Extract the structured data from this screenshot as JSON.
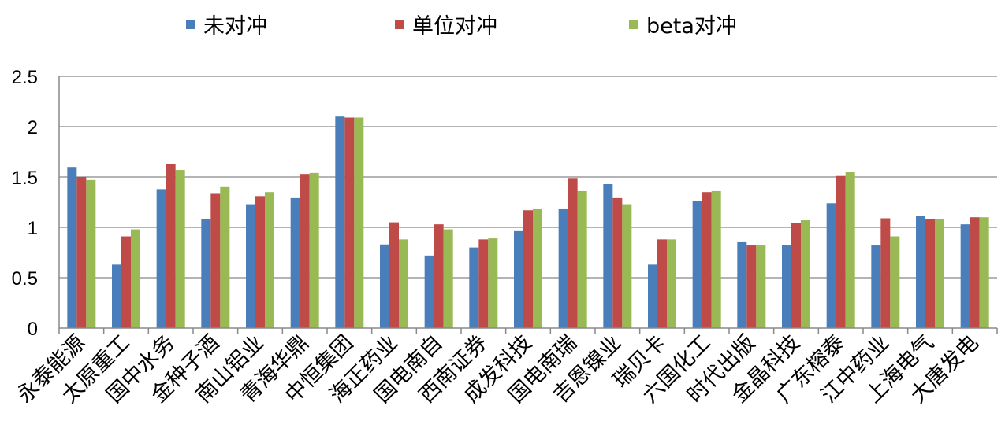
{
  "chart_data": {
    "type": "bar",
    "title": "",
    "xlabel": "",
    "ylabel": "",
    "ylim": [
      0,
      2.5
    ],
    "yticks": [
      "0",
      "0.5",
      "1",
      "1.5",
      "2",
      "2.5"
    ],
    "grid": true,
    "legend_position": "top",
    "categories": [
      "永泰能源",
      "太原重工",
      "国中水务",
      "金种子酒",
      "南山铝业",
      "青海华鼎",
      "中恒集团",
      "海正药业",
      "国电南自",
      "西南证券",
      "成发科技",
      "国电南瑞",
      "吉恩镍业",
      "瑞贝卡",
      "六国化工",
      "时代出版",
      "金晶科技",
      "广东榕泰",
      "江中药业",
      "上海电气",
      "大唐发电"
    ],
    "series": [
      {
        "name": "未对冲",
        "color": "#4a7ebb",
        "values": [
          1.6,
          0.63,
          1.38,
          1.08,
          1.23,
          1.29,
          2.1,
          0.83,
          0.72,
          0.8,
          0.97,
          1.18,
          1.43,
          0.63,
          1.26,
          0.86,
          0.82,
          1.24,
          0.82,
          1.11,
          1.03
        ]
      },
      {
        "name": "单位对冲",
        "color": "#be4b48",
        "values": [
          1.5,
          0.91,
          1.63,
          1.34,
          1.31,
          1.53,
          2.09,
          1.05,
          1.03,
          0.88,
          1.17,
          1.49,
          1.29,
          0.88,
          1.35,
          0.82,
          1.04,
          1.51,
          1.09,
          1.08,
          1.1
        ]
      },
      {
        "name": "beta对冲",
        "color": "#98b954",
        "values": [
          1.47,
          0.98,
          1.57,
          1.4,
          1.35,
          1.54,
          2.09,
          0.88,
          0.98,
          0.89,
          1.18,
          1.36,
          1.23,
          0.88,
          1.36,
          0.82,
          1.07,
          1.55,
          0.91,
          1.08,
          1.1
        ]
      }
    ]
  }
}
